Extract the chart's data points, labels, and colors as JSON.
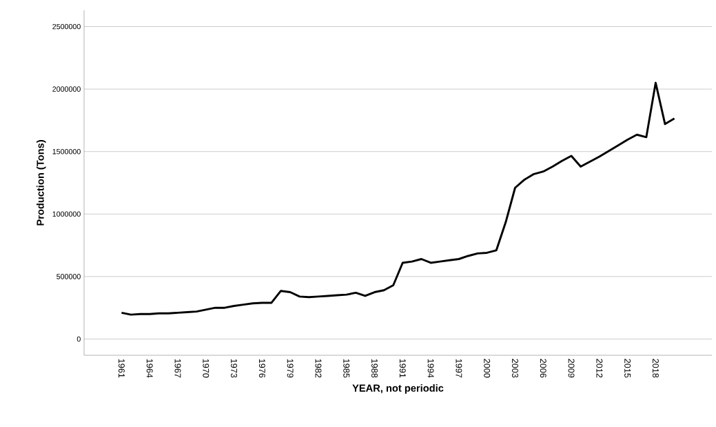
{
  "chart_data": {
    "type": "line",
    "xlabel": "YEAR, not periodic",
    "ylabel": "Production (Tons)",
    "x": [
      1961,
      1962,
      1963,
      1964,
      1965,
      1966,
      1967,
      1968,
      1969,
      1970,
      1971,
      1972,
      1973,
      1974,
      1975,
      1976,
      1977,
      1978,
      1979,
      1980,
      1981,
      1982,
      1983,
      1984,
      1985,
      1986,
      1987,
      1988,
      1989,
      1990,
      1991,
      1992,
      1993,
      1994,
      1995,
      1996,
      1997,
      1998,
      1999,
      2000,
      2001,
      2002,
      2003,
      2004,
      2005,
      2006,
      2007,
      2008,
      2009,
      2010,
      2011,
      2012,
      2013,
      2014,
      2015,
      2016,
      2017,
      2018,
      2019,
      2020
    ],
    "series": [
      {
        "color": "#000000",
        "values": [
          210000,
          195000,
          200000,
          200000,
          205000,
          205000,
          210000,
          215000,
          220000,
          235000,
          250000,
          250000,
          265000,
          275000,
          285000,
          290000,
          290000,
          385000,
          375000,
          340000,
          335000,
          340000,
          345000,
          350000,
          355000,
          370000,
          345000,
          375000,
          390000,
          430000,
          610000,
          620000,
          640000,
          610000,
          620000,
          630000,
          640000,
          665000,
          685000,
          690000,
          710000,
          935000,
          1210000,
          1275000,
          1320000,
          1340000,
          1380000,
          1425000,
          1465000,
          1380000,
          1420000,
          1460000,
          1505000,
          1550000,
          1595000,
          1635000,
          1615000,
          2050000,
          1720000,
          1765000
        ]
      }
    ],
    "xlim": [
      1957,
      2024
    ],
    "xticks": [
      1961,
      1964,
      1967,
      1970,
      1973,
      1976,
      1979,
      1982,
      1985,
      1988,
      1991,
      1994,
      1997,
      2000,
      2003,
      2006,
      2009,
      2012,
      2015,
      2018
    ],
    "ylim": [
      -130000,
      2630000
    ],
    "yticks": [
      0,
      500000,
      1000000,
      1500000,
      2000000,
      2500000
    ],
    "grid": "y",
    "marker": "none",
    "line_style": "solid"
  }
}
